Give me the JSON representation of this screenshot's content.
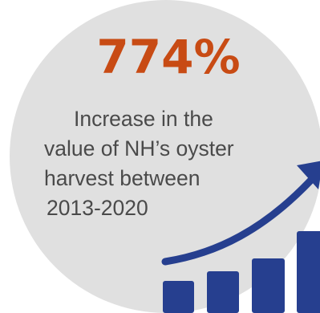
{
  "stat": {
    "value": "774%",
    "description_lines": [
      "Increase in the",
      "value of NH’s oyster",
      "harvest between",
      "2013-2020"
    ]
  },
  "colors": {
    "accent": "#c84b14",
    "circle": "#e0e0e0",
    "text": "#4a4a4a",
    "graphic": "#263f8f"
  },
  "icon": "rising-bar-chart-with-arrow-icon"
}
